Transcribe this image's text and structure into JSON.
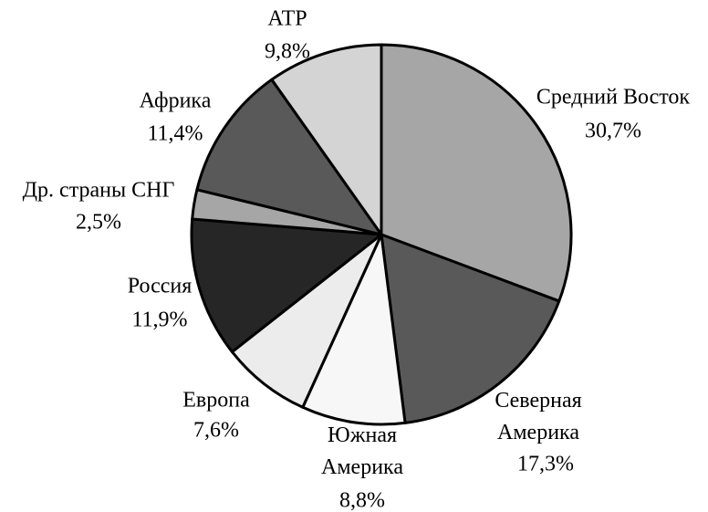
{
  "chart_data": {
    "type": "pie",
    "categories": [
      "Средний Восток",
      "Северная Америка",
      "Южная Америка",
      "Европа",
      "Россия",
      "Др. страны СНГ",
      "Африка",
      "АТР"
    ],
    "values": [
      30.7,
      17.3,
      8.8,
      7.6,
      11.9,
      2.5,
      11.4,
      9.8
    ],
    "value_labels": [
      "30,7%",
      "17,3%",
      "8,8%",
      "7,6%",
      "11,9%",
      "2,5%",
      "11,4%",
      "9,8%"
    ],
    "colors": [
      "#a6a6a6",
      "#595959",
      "#f7f7f7",
      "#ececec",
      "#262626",
      "#a6a6a6",
      "#595959",
      "#d4d4d4"
    ]
  }
}
